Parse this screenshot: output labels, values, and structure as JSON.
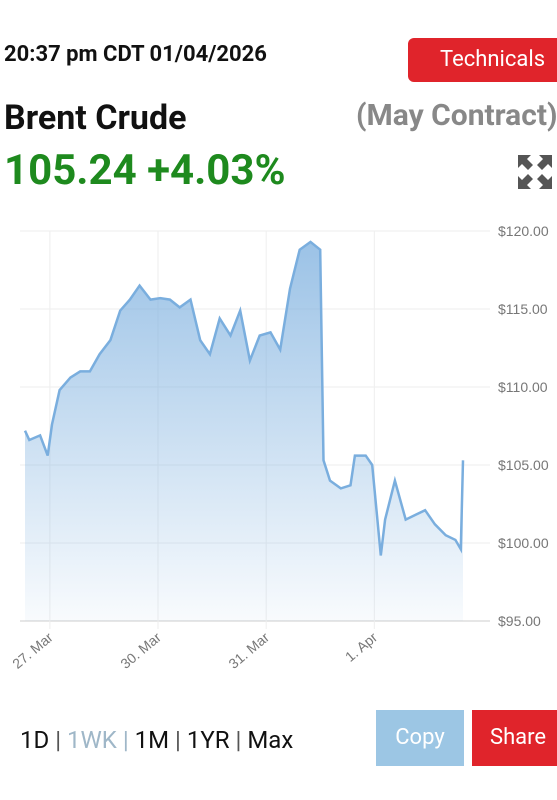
{
  "header": {
    "time": "20:37 pm CDT 01/04/2026",
    "technicals": "Technicals",
    "name": "Brent Crude",
    "contract": "(May Contract)",
    "price": "105.24",
    "change": "+4.03%"
  },
  "chart_data": {
    "type": "area",
    "color": "#7aaede",
    "x": [
      -0.23,
      -0.19,
      -0.09,
      -0.02,
      0.02,
      0.09,
      0.19,
      0.28,
      0.37,
      0.46,
      0.56,
      0.65,
      0.74,
      0.83,
      0.93,
      1.02,
      1.11,
      1.2,
      1.3,
      1.39,
      1.48,
      1.57,
      1.67,
      1.76,
      1.85,
      1.94,
      2.04,
      2.13,
      2.22,
      2.31,
      2.41,
      2.5,
      2.53,
      2.59,
      2.69,
      2.78,
      2.82,
      2.92,
      2.98,
      3.06,
      3.1,
      3.19,
      3.29,
      3.38,
      3.47,
      3.56,
      3.66,
      3.75,
      3.8,
      3.82
    ],
    "values": [
      107.2,
      106.6,
      106.9,
      105.6,
      107.6,
      109.8,
      110.6,
      111.0,
      111.0,
      112.1,
      113.0,
      114.9,
      115.6,
      116.5,
      115.6,
      115.7,
      115.6,
      115.1,
      115.6,
      113.0,
      112.1,
      114.4,
      113.3,
      114.9,
      111.7,
      113.3,
      113.5,
      112.4,
      116.3,
      118.8,
      119.3,
      118.8,
      105.3,
      104.0,
      103.5,
      103.7,
      105.6,
      105.6,
      105.0,
      99.2,
      101.5,
      104.0,
      101.5,
      101.8,
      102.1,
      101.2,
      100.5,
      100.2,
      99.6,
      105.3
    ],
    "xlim": [
      -0.23,
      3.82
    ],
    "xticks": [
      {
        "value": 0,
        "label": "27. Mar"
      },
      {
        "value": 1,
        "label": "30. Mar"
      },
      {
        "value": 2,
        "label": "31. Mar"
      },
      {
        "value": 3,
        "label": "1. Apr"
      }
    ],
    "ylim": [
      95,
      120
    ],
    "yticks": [
      {
        "value": 95,
        "label": "$95.00"
      },
      {
        "value": 100,
        "label": "$100.00"
      },
      {
        "value": 105,
        "label": "$105.00"
      },
      {
        "value": 110,
        "label": "$110.00"
      },
      {
        "value": 115,
        "label": "$115.00"
      },
      {
        "value": 120,
        "label": "$120.00"
      }
    ],
    "grid": true
  },
  "ranges": [
    "1D",
    "1WK",
    "1M",
    "1YR",
    "Max"
  ],
  "buttons": {
    "copy": "Copy",
    "share": "Share"
  }
}
